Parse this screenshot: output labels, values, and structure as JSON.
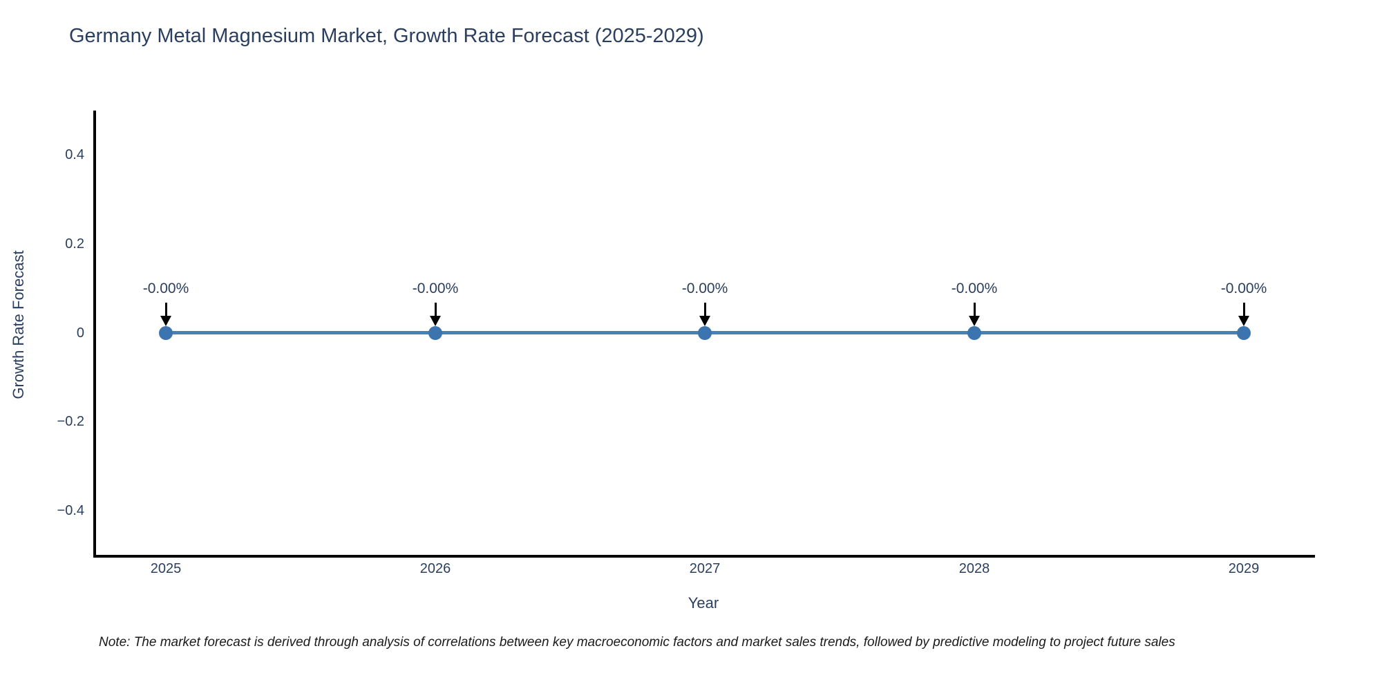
{
  "title": "Germany Metal Magnesium Market, Growth Rate Forecast (2025-2029)",
  "note": "Note: The market forecast is derived through analysis of correlations between key macroeconomic factors and market sales trends, followed by predictive modeling to project future sales",
  "chart_data": {
    "type": "line",
    "title": "Germany Metal Magnesium Market, Growth Rate Forecast (2025-2029)",
    "xlabel": "Year",
    "ylabel": "Growth Rate Forecast",
    "x": [
      2025,
      2026,
      2027,
      2028,
      2029
    ],
    "x_tick_labels": [
      "2025",
      "2026",
      "2027",
      "2028",
      "2029"
    ],
    "series": [
      {
        "name": "Growth Rate Forecast",
        "values": [
          0,
          0,
          0,
          0,
          0
        ],
        "point_labels": [
          "-0.00%",
          "-0.00%",
          "-0.00%",
          "-0.00%",
          "-0.00%"
        ]
      }
    ],
    "yticks": [
      0.4,
      0.2,
      0,
      -0.2,
      -0.4
    ],
    "ytick_labels": [
      "0.4",
      "0.2",
      "0",
      "−0.2",
      "−0.4"
    ],
    "ylim": [
      -0.5,
      0.5
    ],
    "grid": false,
    "legend_position": "none",
    "colors": {
      "line": "#4682b4",
      "marker": "#3c74b0",
      "axis": "#000000",
      "text": "#2a3f5f",
      "annotation_arrow": "#000000",
      "background": "#ffffff"
    }
  }
}
